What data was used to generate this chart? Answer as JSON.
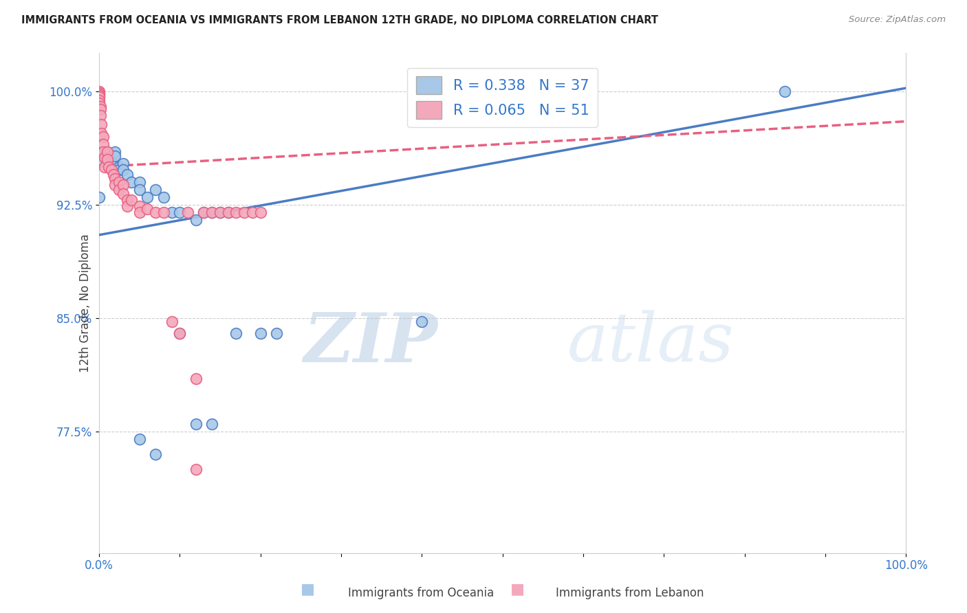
{
  "title": "IMMIGRANTS FROM OCEANIA VS IMMIGRANTS FROM LEBANON 12TH GRADE, NO DIPLOMA CORRELATION CHART",
  "source": "Source: ZipAtlas.com",
  "ylabel": "12th Grade, No Diploma",
  "ytick_labels": [
    "100.0%",
    "92.5%",
    "85.0%",
    "77.5%"
  ],
  "ytick_values": [
    1.0,
    0.925,
    0.85,
    0.775
  ],
  "xlim": [
    0.0,
    1.0
  ],
  "ylim": [
    0.695,
    1.025
  ],
  "legend_r_oceania": "0.338",
  "legend_n_oceania": "37",
  "legend_r_lebanon": "0.065",
  "legend_n_lebanon": "51",
  "color_oceania": "#a8c8e8",
  "color_lebanon": "#f4a8bc",
  "color_oceania_line": "#4a7cc4",
  "color_lebanon_line": "#e86080",
  "watermark_zip": "ZIP",
  "watermark_atlas": "atlas",
  "oceania_line_x": [
    0.0,
    1.0
  ],
  "oceania_line_y": [
    0.905,
    1.002
  ],
  "lebanon_line_x": [
    0.0,
    1.0
  ],
  "lebanon_line_y": [
    0.95,
    0.98
  ],
  "oceania_points": [
    [
      0.0,
      0.93
    ],
    [
      0.0,
      0.955
    ],
    [
      0.0,
      0.96
    ],
    [
      0.01,
      0.96
    ],
    [
      0.01,
      0.958
    ],
    [
      0.01,
      0.955
    ],
    [
      0.015,
      0.955
    ],
    [
      0.015,
      0.952
    ],
    [
      0.02,
      0.96
    ],
    [
      0.02,
      0.957
    ],
    [
      0.025,
      0.95
    ],
    [
      0.025,
      0.948
    ],
    [
      0.03,
      0.952
    ],
    [
      0.03,
      0.948
    ],
    [
      0.035,
      0.945
    ],
    [
      0.04,
      0.94
    ],
    [
      0.05,
      0.94
    ],
    [
      0.05,
      0.935
    ],
    [
      0.06,
      0.93
    ],
    [
      0.07,
      0.935
    ],
    [
      0.08,
      0.93
    ],
    [
      0.09,
      0.92
    ],
    [
      0.1,
      0.92
    ],
    [
      0.12,
      0.915
    ],
    [
      0.13,
      0.92
    ],
    [
      0.14,
      0.92
    ],
    [
      0.15,
      0.92
    ],
    [
      0.16,
      0.92
    ],
    [
      0.17,
      0.84
    ],
    [
      0.2,
      0.84
    ],
    [
      0.22,
      0.84
    ],
    [
      0.1,
      0.84
    ],
    [
      0.12,
      0.78
    ],
    [
      0.14,
      0.78
    ],
    [
      0.07,
      0.76
    ],
    [
      0.05,
      0.77
    ],
    [
      0.4,
      0.848
    ],
    [
      0.85,
      1.0
    ]
  ],
  "lebanon_points": [
    [
      0.0,
      1.0
    ],
    [
      0.0,
      0.999
    ],
    [
      0.0,
      0.998
    ],
    [
      0.0,
      0.997
    ],
    [
      0.0,
      0.996
    ],
    [
      0.0,
      0.994
    ],
    [
      0.0,
      0.992
    ],
    [
      0.002,
      0.99
    ],
    [
      0.002,
      0.988
    ],
    [
      0.002,
      0.984
    ],
    [
      0.003,
      0.978
    ],
    [
      0.003,
      0.972
    ],
    [
      0.005,
      0.97
    ],
    [
      0.005,
      0.965
    ],
    [
      0.005,
      0.96
    ],
    [
      0.007,
      0.956
    ],
    [
      0.007,
      0.95
    ],
    [
      0.01,
      0.96
    ],
    [
      0.01,
      0.955
    ],
    [
      0.012,
      0.95
    ],
    [
      0.015,
      0.948
    ],
    [
      0.018,
      0.945
    ],
    [
      0.02,
      0.942
    ],
    [
      0.02,
      0.938
    ],
    [
      0.025,
      0.94
    ],
    [
      0.025,
      0.935
    ],
    [
      0.03,
      0.938
    ],
    [
      0.03,
      0.932
    ],
    [
      0.035,
      0.928
    ],
    [
      0.035,
      0.924
    ],
    [
      0.04,
      0.928
    ],
    [
      0.05,
      0.924
    ],
    [
      0.05,
      0.92
    ],
    [
      0.06,
      0.922
    ],
    [
      0.07,
      0.92
    ],
    [
      0.08,
      0.92
    ],
    [
      0.09,
      0.848
    ],
    [
      0.1,
      0.84
    ],
    [
      0.11,
      0.92
    ],
    [
      0.12,
      0.81
    ],
    [
      0.13,
      0.92
    ],
    [
      0.14,
      0.92
    ],
    [
      0.15,
      0.92
    ],
    [
      0.16,
      0.92
    ],
    [
      0.17,
      0.92
    ],
    [
      0.18,
      0.92
    ],
    [
      0.19,
      0.92
    ],
    [
      0.2,
      0.92
    ],
    [
      0.12,
      0.75
    ]
  ],
  "background_color": "#ffffff",
  "grid_color": "#cccccc",
  "title_color": "#222222",
  "source_color": "#888888"
}
